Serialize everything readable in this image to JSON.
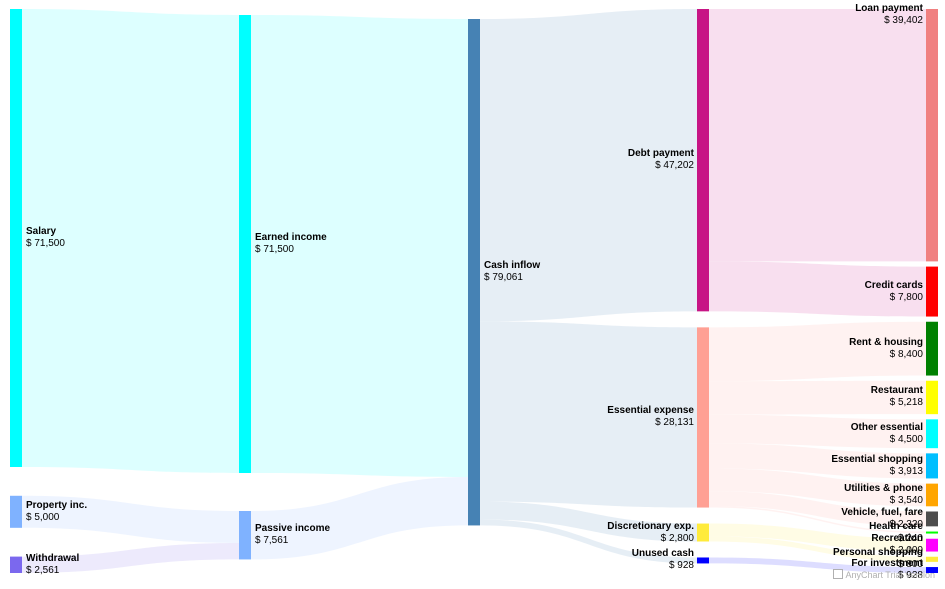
{
  "chart_data": {
    "type": "sankey",
    "title": "",
    "nodes": [
      {
        "id": "salary",
        "name": "Salary",
        "value_label": "$ 71,500",
        "value": 71500,
        "column": 0,
        "color": "#00ffff"
      },
      {
        "id": "property",
        "name": "Property inc.",
        "value_label": "$ 5,000",
        "value": 5000,
        "column": 0,
        "color": "#7fb2ff"
      },
      {
        "id": "withdrawal",
        "name": "Withdrawal",
        "value_label": "$ 2,561",
        "value": 2561,
        "column": 0,
        "color": "#7b68ee"
      },
      {
        "id": "earned",
        "name": "Earned income",
        "value_label": "$ 71,500",
        "value": 71500,
        "column": 1,
        "color": "#00ffff"
      },
      {
        "id": "passive",
        "name": "Passive income",
        "value_label": "$ 7,561",
        "value": 7561,
        "column": 1,
        "color": "#7fb2ff"
      },
      {
        "id": "cash",
        "name": "Cash inflow",
        "value_label": "$ 79,061",
        "value": 79061,
        "column": 2,
        "color": "#4682b4"
      },
      {
        "id": "debt",
        "name": "Debt payment",
        "value_label": "$ 47,202",
        "value": 47202,
        "column": 3,
        "color": "#c71585"
      },
      {
        "id": "essential",
        "name": "Essential expense",
        "value_label": "$ 28,131",
        "value": 28131,
        "column": 3,
        "color": "#ffa094"
      },
      {
        "id": "discretionary",
        "name": "Discretionary exp.",
        "value_label": "$ 2,800",
        "value": 2800,
        "column": 3,
        "color": "#ffeb3b"
      },
      {
        "id": "unused",
        "name": "Unused cash",
        "value_label": "$ 928",
        "value": 928,
        "column": 3,
        "color": "#0000ff"
      },
      {
        "id": "loan",
        "name": "Loan payment",
        "value_label": "$ 39,402",
        "value": 39402,
        "column": 4,
        "color": "#f08080"
      },
      {
        "id": "credit",
        "name": "Credit cards",
        "value_label": "$ 7,800",
        "value": 7800,
        "column": 4,
        "color": "#ff0000"
      },
      {
        "id": "rent",
        "name": "Rent & housing",
        "value_label": "$ 8,400",
        "value": 8400,
        "column": 4,
        "color": "#008000"
      },
      {
        "id": "restaurant",
        "name": "Restaurant",
        "value_label": "$ 5,218",
        "value": 5218,
        "column": 4,
        "color": "#ffff00"
      },
      {
        "id": "other",
        "name": "Other essential",
        "value_label": "$ 4,500",
        "value": 4500,
        "column": 4,
        "color": "#00ffff"
      },
      {
        "id": "shopping",
        "name": "Essential shopping",
        "value_label": "$ 3,913",
        "value": 3913,
        "column": 4,
        "color": "#00bfff"
      },
      {
        "id": "utilities",
        "name": "Utilities & phone",
        "value_label": "$ 3,540",
        "value": 3540,
        "column": 4,
        "color": "#ffa500"
      },
      {
        "id": "vehicle",
        "name": "Vehicle, fuel, fare",
        "value_label": "$ 2,320",
        "value": 2320,
        "column": 4,
        "color": "#4d4d4d"
      },
      {
        "id": "health",
        "name": "Health care",
        "value_label": "$ 240",
        "value": 240,
        "column": 4,
        "color": "#00ff00"
      },
      {
        "id": "recreation",
        "name": "Recreation",
        "value_label": "$ 2,000",
        "value": 2000,
        "column": 4,
        "color": "#ff00ff"
      },
      {
        "id": "personal",
        "name": "Personal shopping",
        "value_label": "$ 800",
        "value": 800,
        "column": 4,
        "color": "#ffeb3b"
      },
      {
        "id": "investment",
        "name": "For investment",
        "value_label": "$ 928",
        "value": 928,
        "column": 4,
        "color": "#0000ff"
      }
    ],
    "links": [
      {
        "from": "salary",
        "to": "earned",
        "value": 71500
      },
      {
        "from": "property",
        "to": "passive",
        "value": 5000
      },
      {
        "from": "withdrawal",
        "to": "passive",
        "value": 2561
      },
      {
        "from": "earned",
        "to": "cash",
        "value": 71500
      },
      {
        "from": "passive",
        "to": "cash",
        "value": 7561
      },
      {
        "from": "cash",
        "to": "debt",
        "value": 47202
      },
      {
        "from": "cash",
        "to": "essential",
        "value": 28131
      },
      {
        "from": "cash",
        "to": "discretionary",
        "value": 2800
      },
      {
        "from": "cash",
        "to": "unused",
        "value": 928
      },
      {
        "from": "debt",
        "to": "loan",
        "value": 39402
      },
      {
        "from": "debt",
        "to": "credit",
        "value": 7800
      },
      {
        "from": "essential",
        "to": "rent",
        "value": 8400
      },
      {
        "from": "essential",
        "to": "restaurant",
        "value": 5218
      },
      {
        "from": "essential",
        "to": "other",
        "value": 4500
      },
      {
        "from": "essential",
        "to": "shopping",
        "value": 3913
      },
      {
        "from": "essential",
        "to": "utilities",
        "value": 3540
      },
      {
        "from": "essential",
        "to": "vehicle",
        "value": 2320
      },
      {
        "from": "essential",
        "to": "health",
        "value": 240
      },
      {
        "from": "discretionary",
        "to": "recreation",
        "value": 2000
      },
      {
        "from": "discretionary",
        "to": "personal",
        "value": 800
      },
      {
        "from": "unused",
        "to": "investment",
        "value": 928
      }
    ]
  },
  "credit": "AnyChart Trial Version"
}
